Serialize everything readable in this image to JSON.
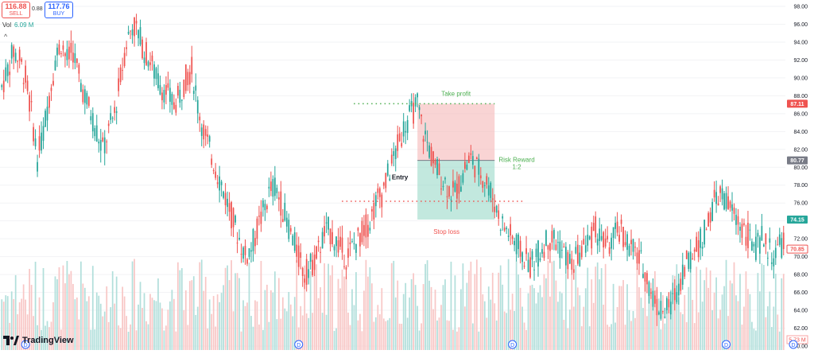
{
  "header": {
    "sell_price": "116.88",
    "sell_label": "SELL",
    "spread": "0.88",
    "buy_price": "117.76",
    "buy_label": "BUY",
    "volume_label": "Vol",
    "volume_value": "6.09 M"
  },
  "brand": {
    "logo_text": "TradingView"
  },
  "colors": {
    "up": "#26a69a",
    "down": "#ef5350",
    "profit_zone": "#f5b8b8",
    "loss_zone": "#9ad8c8",
    "label_green": "#4caf50",
    "label_red": "#ef5350"
  },
  "chart_data": {
    "type": "candlestick",
    "y_axis": {
      "min": 60,
      "max": 98,
      "step": 2,
      "tick_labels": [
        "98.00",
        "96.00",
        "94.00",
        "92.00",
        "90.00",
        "88.00",
        "86.00",
        "84.00",
        "82.00",
        "80.00",
        "78.00",
        "76.00",
        "74.00",
        "72.00",
        "70.00",
        "68.00",
        "66.00",
        "64.00",
        "62.00",
        "60.00"
      ]
    },
    "price_tags": [
      {
        "label": "87.11",
        "value": 87.11,
        "color": "#ef5350"
      },
      {
        "label": "80.77",
        "value": 80.77,
        "color": "#787b86"
      },
      {
        "label": "74.15",
        "value": 74.15,
        "color": "#26a69a"
      },
      {
        "label": "70.85",
        "value": 70.85,
        "color": "#ef5350",
        "outlined": true
      }
    ],
    "volume_tag": {
      "label": "5.73 M"
    },
    "close_path": [
      89,
      91,
      93,
      92,
      90,
      86,
      81,
      84,
      88,
      92,
      94,
      92,
      93,
      90,
      88,
      86,
      84,
      82,
      84,
      86,
      90,
      94,
      96,
      95,
      93,
      92,
      90,
      89,
      88,
      87,
      88,
      90,
      91,
      87,
      84,
      82,
      80,
      78,
      76,
      74,
      72,
      70,
      71,
      73,
      75,
      77,
      78,
      76,
      74,
      72,
      70,
      68,
      69,
      70,
      72,
      73,
      72,
      71,
      70,
      71,
      72,
      73,
      74,
      76,
      77,
      79,
      81,
      83,
      85,
      86,
      87,
      84,
      82,
      80,
      79,
      78,
      77,
      78,
      80,
      81,
      80,
      79,
      78,
      76,
      74,
      73,
      72,
      71,
      70,
      69,
      70,
      71,
      72,
      72,
      71,
      70,
      69,
      70,
      71,
      72,
      73,
      72,
      71,
      72,
      73,
      72,
      71,
      70,
      69,
      67,
      65,
      64,
      64,
      65,
      67,
      69,
      70,
      71,
      72,
      74,
      76,
      77,
      76,
      75,
      74,
      73,
      72,
      71,
      72,
      71,
      70,
      71,
      72
    ],
    "annotations": [
      {
        "text": "Take profit",
        "value": 87.11,
        "color": "#4caf50"
      },
      {
        "text": "Entry",
        "value": 80.77,
        "color": "#131722"
      },
      {
        "text": "Stop loss",
        "value": 74.15,
        "color": "#ef5350"
      },
      {
        "text": "Risk Reward",
        "color": "#4caf50"
      },
      {
        "text": "1:2",
        "color": "#4caf50"
      }
    ],
    "dotted_levels": [
      {
        "value": 87.11,
        "color": "#4caf50"
      },
      {
        "value": 76.2,
        "color": "#ef5350"
      }
    ],
    "position": {
      "target": 87.11,
      "entry": 80.77,
      "stop": 74.15,
      "start_index": 70,
      "end_index": 83
    },
    "event_markers": [
      4,
      50,
      86,
      122,
      158,
      162
    ]
  }
}
